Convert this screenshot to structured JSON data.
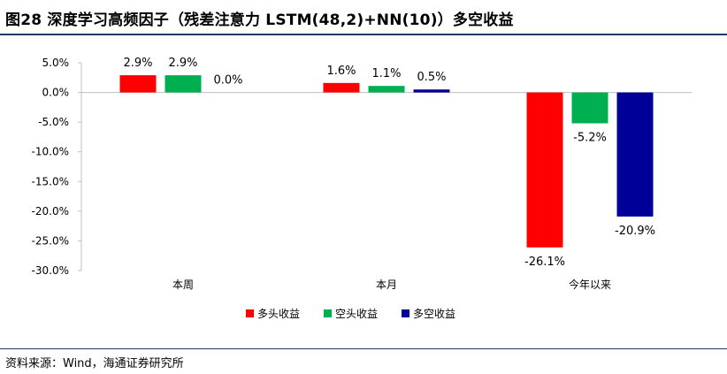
{
  "title": "图28 深度学习高频因子（残差注意力 LSTM(48,2)+NN(10)）多空收益",
  "source": "资料来源：Wind，海通证券研究所",
  "chart_data": {
    "type": "bar",
    "categories": [
      "本周",
      "本月",
      "今年以来"
    ],
    "series": [
      {
        "name": "多头收益",
        "color": "#ff0000",
        "values": [
          2.9,
          1.6,
          -26.1
        ],
        "labels": [
          "2.9%",
          "1.6%",
          "-26.1%"
        ]
      },
      {
        "name": "空头收益",
        "color": "#00b050",
        "values": [
          2.9,
          1.1,
          -5.2
        ],
        "labels": [
          "2.9%",
          "1.1%",
          "-5.2%"
        ]
      },
      {
        "name": "多空收益",
        "color": "#000099",
        "values": [
          0.0,
          0.5,
          -20.9
        ],
        "labels": [
          "0.0%",
          "0.5%",
          "-20.9%"
        ]
      }
    ],
    "ylim": [
      -30,
      5
    ],
    "yticks": [
      5,
      0,
      -5,
      -10,
      -15,
      -20,
      -25,
      -30
    ],
    "ytick_labels": [
      "5.0%",
      "0.0%",
      "-5.0%",
      "-10.0%",
      "-15.0%",
      "-20.0%",
      "-25.0%",
      "-30.0%"
    ],
    "legend_position": "bottom",
    "grid": false
  }
}
